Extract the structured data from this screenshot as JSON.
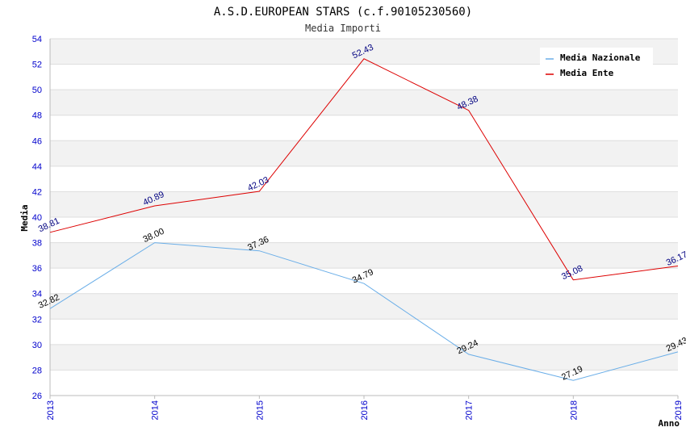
{
  "chart_data": {
    "type": "line",
    "title": "A.S.D.EUROPEAN STARS (c.f.90105230560)",
    "subtitle": "Media Importi",
    "xlabel": "Anno",
    "ylabel": "Media",
    "x": [
      "2013",
      "2014",
      "2015",
      "2016",
      "2017",
      "2018",
      "2019"
    ],
    "ylim": [
      26,
      54
    ],
    "yticks": [
      26,
      28,
      30,
      32,
      34,
      36,
      38,
      40,
      42,
      44,
      46,
      48,
      50,
      52,
      54
    ],
    "grid": true,
    "legend_position": "top-right",
    "series": [
      {
        "name": "Media Nazionale",
        "color": "#6aaee8",
        "label_color": "#000000",
        "values": [
          32.82,
          38.0,
          37.36,
          34.79,
          29.24,
          27.19,
          29.43
        ],
        "labels": [
          "32.82",
          "38.00",
          "37.36",
          "34.79",
          "29.24",
          "27.19",
          "29.43"
        ]
      },
      {
        "name": "Media Ente",
        "color": "#dd0000",
        "label_color": "#000080",
        "values": [
          38.81,
          40.89,
          42.03,
          52.43,
          48.38,
          35.08,
          36.17
        ],
        "labels": [
          "38.81",
          "40.89",
          "42.03",
          "52.43",
          "48.38",
          "35.08",
          "36.17"
        ]
      }
    ]
  }
}
